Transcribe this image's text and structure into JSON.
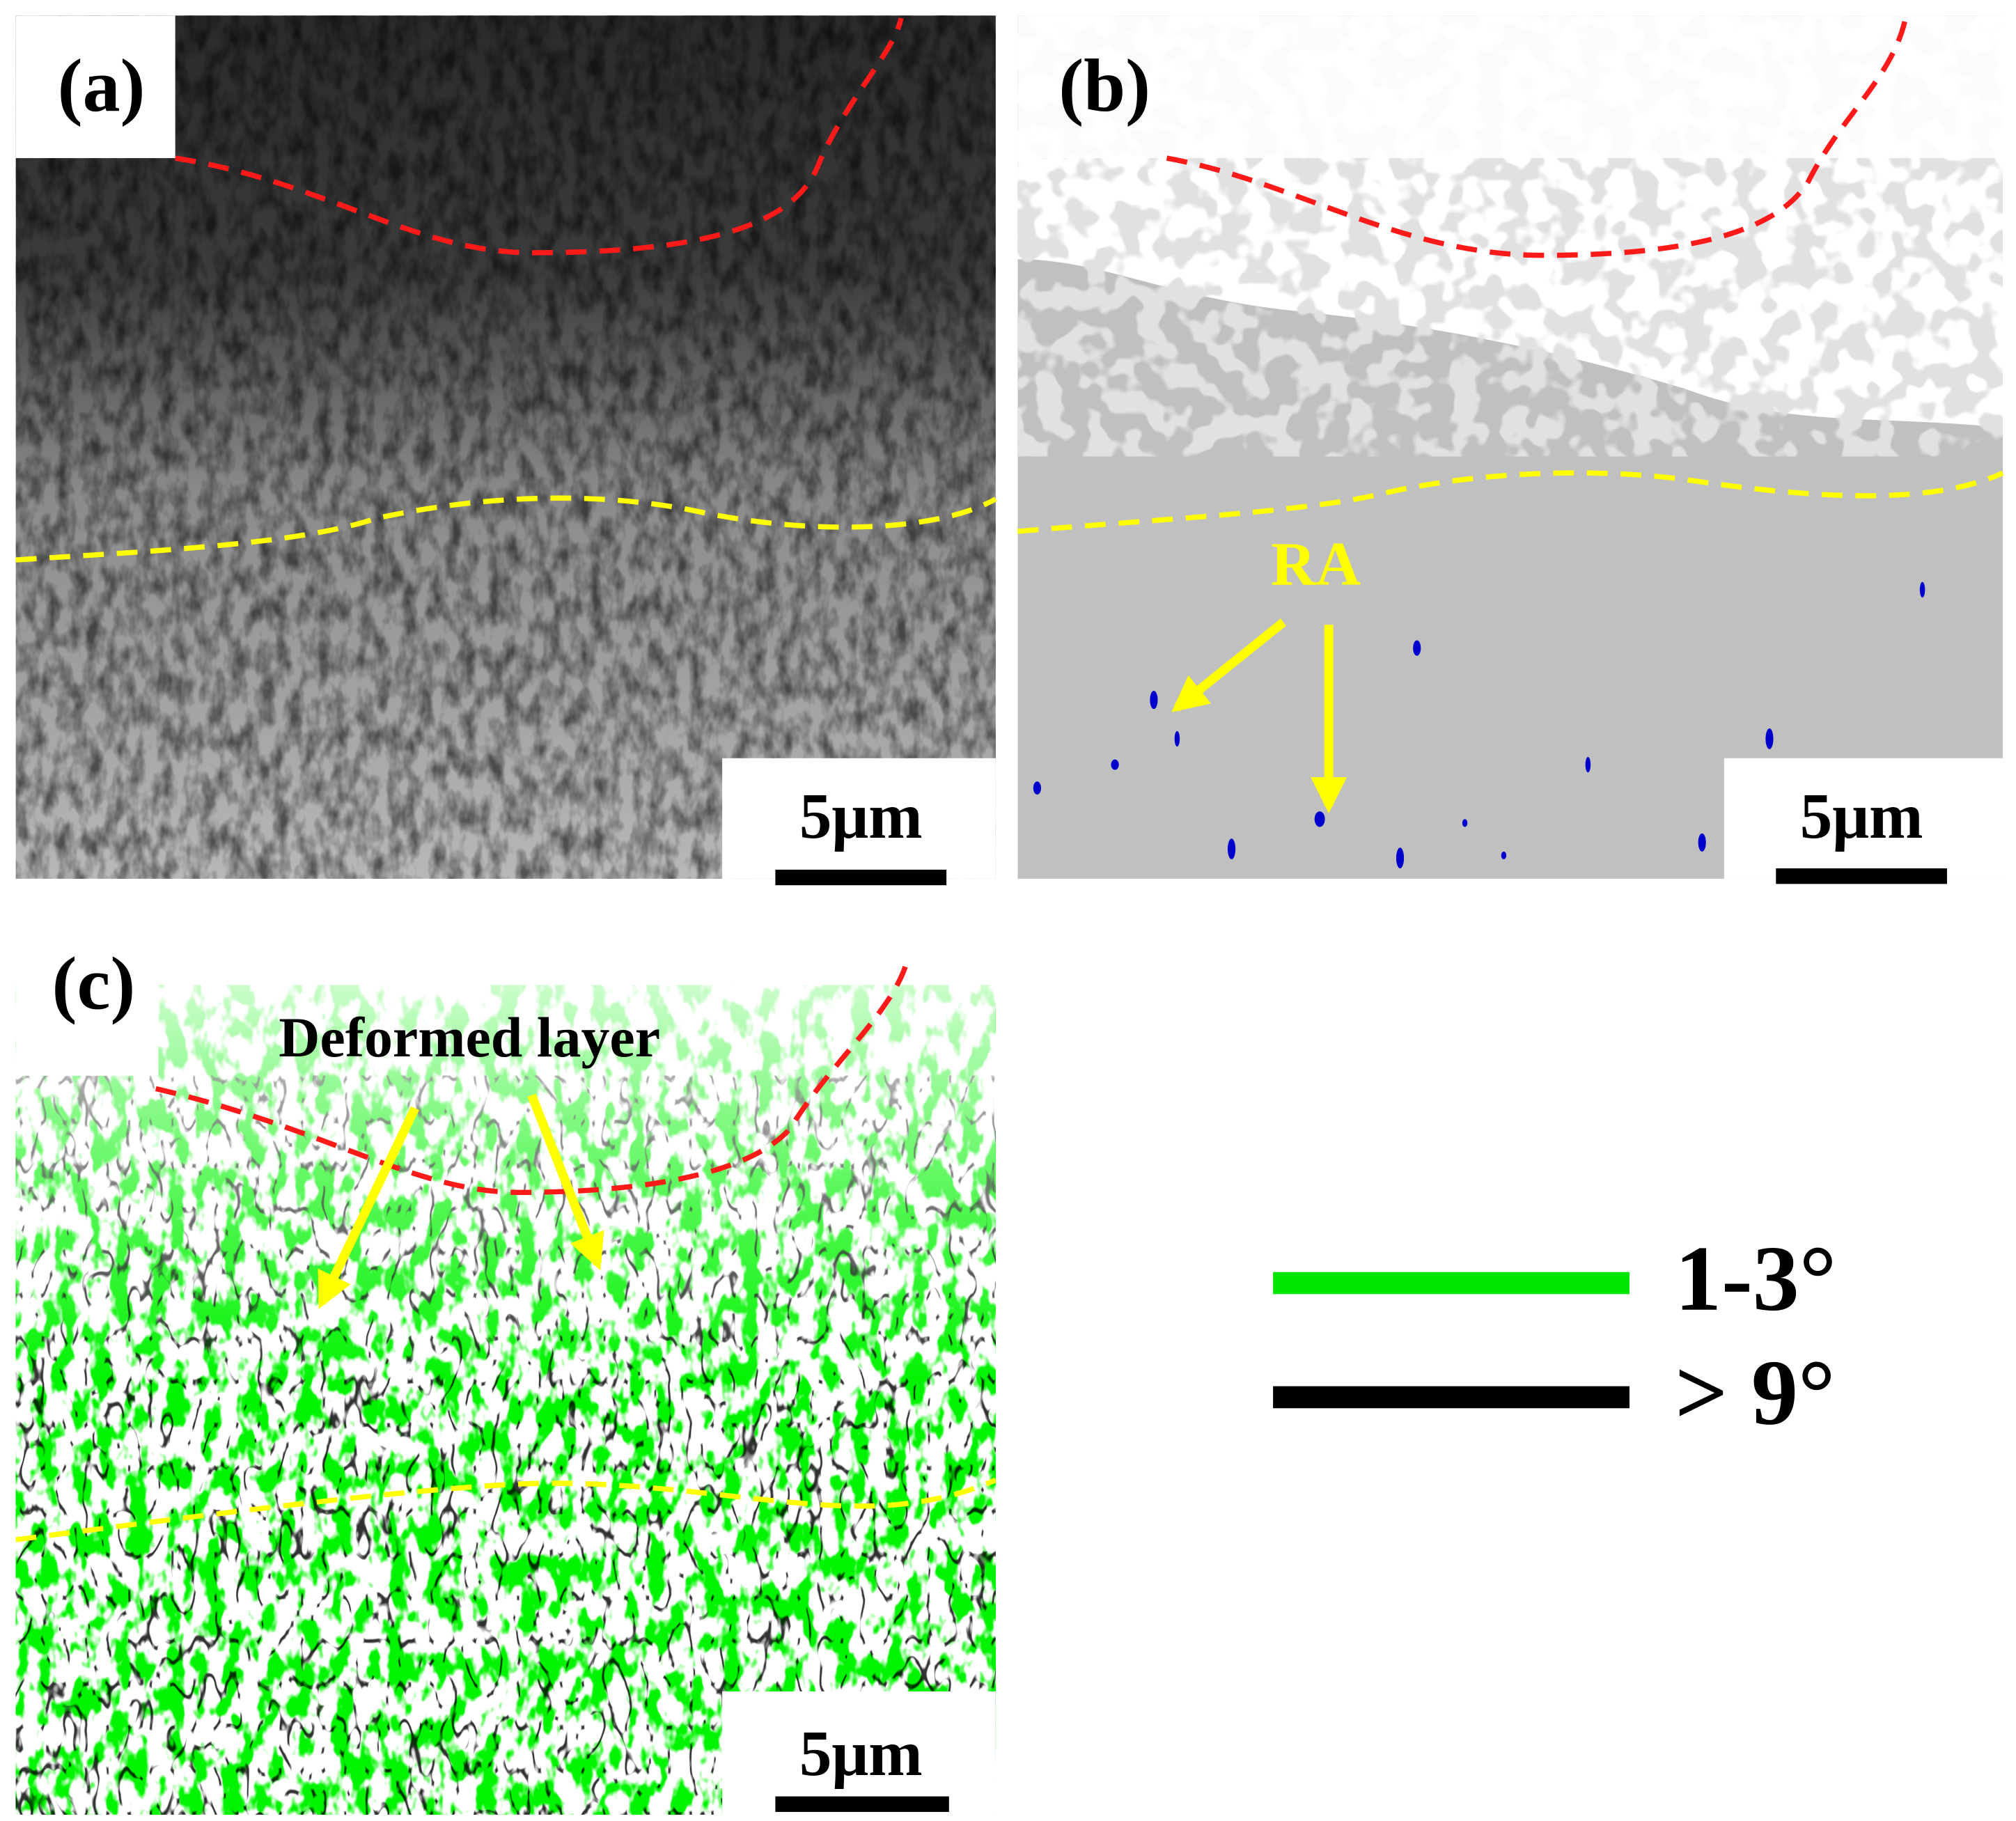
{
  "panels": [
    {
      "label": "(a)",
      "scale_bar": "5μm"
    },
    {
      "label": "(b)",
      "scale_bar": "5μm",
      "annotation": "RA"
    },
    {
      "label": "(c)",
      "scale_bar": "5μm",
      "annotation": "Deformed layer"
    }
  ],
  "legend": [
    {
      "label": "1-3°",
      "color": "#00e600"
    },
    {
      "label": "> 9°",
      "color": "#000000"
    }
  ]
}
